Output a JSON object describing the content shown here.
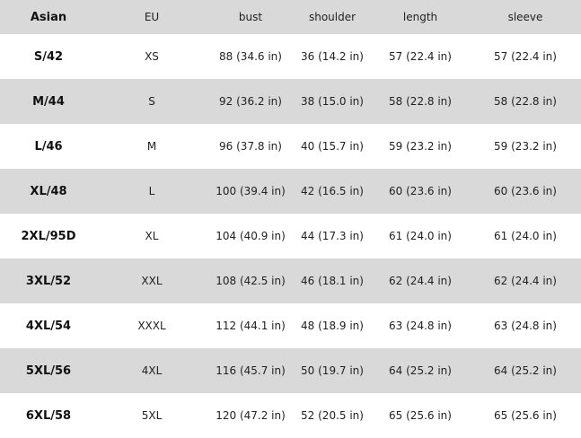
{
  "table": {
    "header": [
      "Asian",
      "EU",
      "bust",
      "shoulder",
      "length",
      "sleeve"
    ],
    "rows": [
      [
        "S/42",
        "XS",
        "88 (34.6 in)",
        "36 (14.2 in)",
        "57 (22.4 in)",
        "57 (22.4 in)"
      ],
      [
        "M/44",
        "S",
        "92 (36.2 in)",
        "38 (15.0 in)",
        "58 (22.8 in)",
        "58 (22.8 in)"
      ],
      [
        "L/46",
        "M",
        "96 (37.8 in)",
        "40 (15.7 in)",
        "59 (23.2 in)",
        "59 (23.2 in)"
      ],
      [
        "XL/48",
        "L",
        "100 (39.4 in)",
        "42 (16.5 in)",
        "60 (23.6 in)",
        "60 (23.6 in)"
      ],
      [
        "2XL/95D",
        "XL",
        "104 (40.9 in)",
        "44 (17.3 in)",
        "61 (24.0 in)",
        "61 (24.0 in)"
      ],
      [
        "3XL/52",
        "XXL",
        "108 (42.5 in)",
        "46 (18.1 in)",
        "62 (24.4 in)",
        "62 (24.4 in)"
      ],
      [
        "4XL/54",
        "XXXL",
        "112 (44.1 in)",
        "48 (18.9 in)",
        "63 (24.8 in)",
        "63 (24.8 in)"
      ],
      [
        "5XL/56",
        "4XL",
        "116 (45.7 in)",
        "50 (19.7 in)",
        "64 (25.2 in)",
        "64 (25.2 in)"
      ],
      [
        "6XL/58",
        "5XL",
        "120 (47.2 in)",
        "52 (20.5 in)",
        "65 (25.6 in)",
        "65 (25.6 in)"
      ]
    ]
  }
}
